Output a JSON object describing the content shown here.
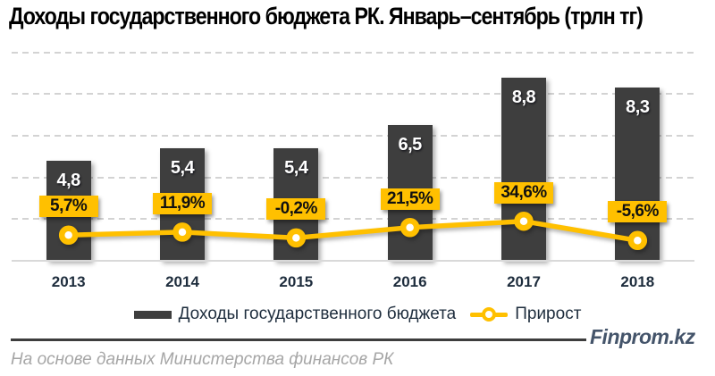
{
  "title": "Доходы государственного бюджета РК. Январь–сентябрь (трлн тг)",
  "chart_data": {
    "type": "bar",
    "title": "Доходы государственного бюджета РК. Январь–сентябрь (трлн тг)",
    "categories": [
      "2013",
      "2014",
      "2015",
      "2016",
      "2017",
      "2018"
    ],
    "series": [
      {
        "name": "Доходы государственного бюджета",
        "type": "bar",
        "unit": "трлн тг",
        "values": [
          4.8,
          5.4,
          5.4,
          6.5,
          8.8,
          8.3
        ],
        "labels": [
          "4,8",
          "5,4",
          "5,4",
          "6,5",
          "8,8",
          "8,3"
        ],
        "color": "#3e3e3e"
      },
      {
        "name": "Прирост",
        "type": "line",
        "unit": "%",
        "values": [
          5.7,
          11.9,
          -0.2,
          21.5,
          34.6,
          -5.6
        ],
        "labels": [
          "5,7%",
          "11,9%",
          "-0,2%",
          "21,5%",
          "34,6%",
          "-5,6%"
        ],
        "color": "#ffc000"
      }
    ],
    "ylim": [
      0,
      10
    ],
    "gridlines": [
      2,
      4,
      6,
      8,
      10
    ],
    "grid": true,
    "legend_position": "bottom"
  },
  "legend": {
    "bar_label": "Доходы государственного бюджета",
    "line_label": "Прирост"
  },
  "footer": {
    "brand": "Finprom.kz",
    "source": "На основе данных Министерства финансов РК"
  },
  "colors": {
    "bar": "#3e3e3e",
    "accent": "#ffc000",
    "axis_text": "#1e2d3d",
    "grid": "#d3d3d3",
    "axis_line": "#d9d9d9",
    "brand": "#44546a",
    "source_text": "#a6a6a6",
    "separator": "#3d3d3d"
  }
}
